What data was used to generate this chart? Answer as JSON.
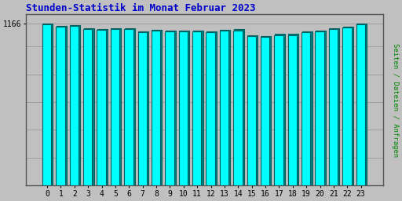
{
  "title": "Stunden-Statistik im Monat Februar 2023",
  "ylabel": "Seiten / Dateien / Anfragen",
  "background_color": "#c0c0c0",
  "bar_cyan_color": "#00ffff",
  "bar_teal_color": "#008080",
  "bar_dark_color": "#006060",
  "title_color": "#0000cc",
  "ylabel_color": "#008800",
  "ytick_val": 1166,
  "ylim": [
    0,
    1230
  ],
  "hours": [
    0,
    1,
    2,
    3,
    4,
    5,
    6,
    7,
    8,
    9,
    10,
    11,
    12,
    13,
    14,
    15,
    16,
    17,
    18,
    19,
    20,
    21,
    22,
    23
  ],
  "vals_back": [
    1166,
    1148,
    1152,
    1128,
    1126,
    1130,
    1132,
    1108,
    1118,
    1116,
    1116,
    1114,
    1110,
    1120,
    1122,
    1082,
    1074,
    1088,
    1088,
    1106,
    1116,
    1130,
    1144,
    1164
  ],
  "vals_front": [
    1160,
    1142,
    1146,
    1122,
    1120,
    1124,
    1126,
    1102,
    1112,
    1110,
    1110,
    1108,
    1104,
    1114,
    1116,
    1076,
    1068,
    1082,
    1082,
    1100,
    1110,
    1124,
    1138,
    1158
  ],
  "grid_heights": [
    200,
    400,
    600,
    800,
    1000,
    1166
  ],
  "figsize": [
    5.12,
    2.56
  ],
  "dpi": 100
}
